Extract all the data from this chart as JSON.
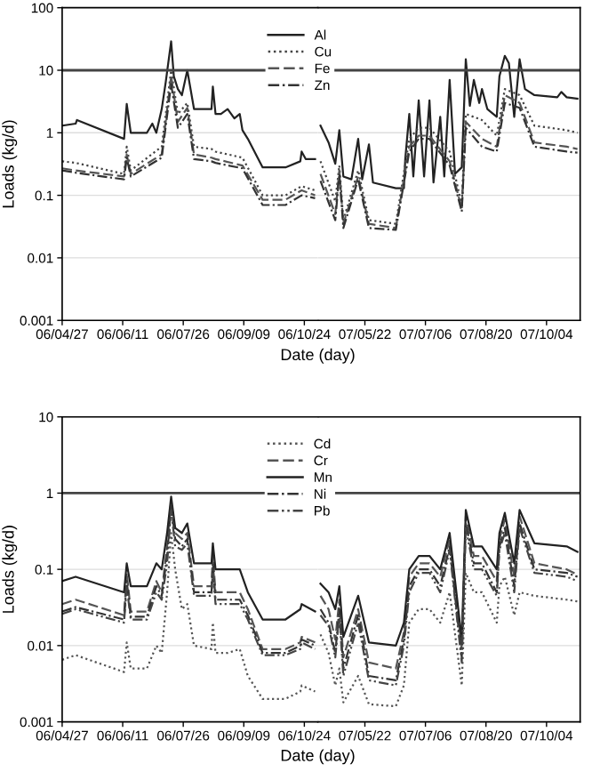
{
  "chart_data": [
    {
      "type": "line",
      "xlabel": "Date (day)",
      "ylabel": "Loads (kg/d)",
      "log": "y",
      "grid": "y",
      "legend": "top center",
      "xlim": [
        "2006-04-27",
        "2006-11-03"
      ],
      "ylim": [
        0.001,
        100
      ],
      "yticks": [
        0.001,
        0.01,
        0.1,
        1,
        10,
        100
      ],
      "xticks": [
        {
          "value": "2006-04-27",
          "label": "06/04/27"
        },
        {
          "value": "2006-06-11",
          "label": "06/06/11"
        },
        {
          "value": "2006-07-26",
          "label": "06/07/26"
        },
        {
          "value": "2006-09-09",
          "label": "06/09/09"
        },
        {
          "value": "2006-10-24",
          "label": "06/10/24"
        }
      ],
      "ref_lines": [
        {
          "axis": "y",
          "value": 10,
          "color": "#444444"
        }
      ],
      "series": [
        {
          "name": "Al",
          "color": "#222222",
          "line_style": "solid",
          "x": [
            "2006-04-27",
            "2006-05-07",
            "2006-05-08",
            "2006-06-12",
            "2006-06-14",
            "2006-06-17",
            "2006-06-29",
            "2006-07-03",
            "2006-07-06",
            "2006-07-10",
            "2006-07-13",
            "2006-07-17",
            "2006-07-19",
            "2006-07-22",
            "2006-07-25",
            "2006-07-29",
            "2006-08-03",
            "2006-08-16",
            "2006-08-17",
            "2006-08-19",
            "2006-08-23",
            "2006-08-28",
            "2006-09-02",
            "2006-09-06",
            "2006-09-08",
            "2006-09-12",
            "2006-09-23",
            "2006-10-10",
            "2006-10-21",
            "2006-10-22",
            "2006-10-25",
            "2006-11-01"
          ],
          "values": [
            1.3,
            1.4,
            1.6,
            0.8,
            2.9,
            1.0,
            1.0,
            1.4,
            1.0,
            2.4,
            6.5,
            29,
            8,
            5,
            4,
            10,
            2.4,
            2.4,
            5.5,
            2,
            2,
            2.4,
            1.7,
            2,
            1.1,
            0.8,
            0.28,
            0.28,
            0.35,
            0.5,
            0.38,
            0.38
          ]
        },
        {
          "name": "Cu",
          "color": "#444444",
          "line_style": "dotted",
          "x": [
            "2006-04-27",
            "2006-05-07",
            "2006-06-12",
            "2006-06-14",
            "2006-06-17",
            "2006-07-10",
            "2006-07-17",
            "2006-07-22",
            "2006-07-29",
            "2006-08-03",
            "2006-08-16",
            "2006-08-19",
            "2006-09-08",
            "2006-09-23",
            "2006-10-10",
            "2006-10-22",
            "2006-11-01"
          ],
          "values": [
            0.35,
            0.33,
            0.22,
            0.6,
            0.25,
            0.6,
            10,
            2,
            3,
            0.6,
            0.55,
            0.5,
            0.4,
            0.1,
            0.1,
            0.14,
            0.12
          ]
        },
        {
          "name": "Fe",
          "color": "#555555",
          "line_style": "dashed",
          "x": [
            "2006-04-27",
            "2006-05-07",
            "2006-06-12",
            "2006-06-14",
            "2006-06-17",
            "2006-07-10",
            "2006-07-17",
            "2006-07-22",
            "2006-07-29",
            "2006-08-03",
            "2006-08-16",
            "2006-08-19",
            "2006-09-08",
            "2006-09-23",
            "2006-10-10",
            "2006-10-22",
            "2006-11-01"
          ],
          "values": [
            0.27,
            0.25,
            0.2,
            0.45,
            0.22,
            0.45,
            8,
            1.5,
            2.5,
            0.45,
            0.4,
            0.38,
            0.3,
            0.085,
            0.085,
            0.12,
            0.1
          ]
        },
        {
          "name": "Zn",
          "color": "#333333",
          "line_style": "dashdot",
          "x": [
            "2006-04-27",
            "2006-05-07",
            "2006-06-12",
            "2006-06-14",
            "2006-06-17",
            "2006-07-10",
            "2006-07-17",
            "2006-07-22",
            "2006-07-29",
            "2006-08-03",
            "2006-08-16",
            "2006-08-19",
            "2006-09-08",
            "2006-09-23",
            "2006-10-10",
            "2006-10-22",
            "2006-11-01"
          ],
          "values": [
            0.25,
            0.23,
            0.18,
            0.4,
            0.2,
            0.4,
            6,
            1.2,
            2,
            0.38,
            0.35,
            0.33,
            0.27,
            0.07,
            0.07,
            0.1,
            0.09
          ]
        }
      ]
    },
    {
      "type": "line",
      "log": "y",
      "grid": "y",
      "tick_labels": "x",
      "xlim": [
        "2007-04-17",
        "2007-10-29"
      ],
      "ylim": [
        0.001,
        100
      ],
      "yticks": [
        0.001,
        0.01,
        0.1,
        1,
        10,
        100
      ],
      "xticks": [
        {
          "value": "2007-05-22",
          "label": "07/05/22"
        },
        {
          "value": "2007-07-06",
          "label": "07/07/06"
        },
        {
          "value": "2007-08-20",
          "label": "07/08/20"
        },
        {
          "value": "2007-10-04",
          "label": "07/10/04"
        }
      ],
      "ref_lines": [
        {
          "axis": "y",
          "value": 10,
          "color": "#444444"
        }
      ],
      "series": [
        {
          "color": "#222222",
          "line_style": "solid",
          "x": [
            "2007-04-19",
            "2007-04-25",
            "2007-04-30",
            "2007-05-03",
            "2007-05-06",
            "2007-05-12",
            "2007-05-17",
            "2007-05-20",
            "2007-05-25",
            "2007-05-28",
            "2007-06-14",
            "2007-06-20",
            "2007-06-21",
            "2007-06-24",
            "2007-06-27",
            "2007-07-01",
            "2007-07-05",
            "2007-07-09",
            "2007-07-12",
            "2007-07-17",
            "2007-07-20",
            "2007-07-24",
            "2007-07-28",
            "2007-08-02",
            "2007-08-05",
            "2007-08-08",
            "2007-08-11",
            "2007-08-15",
            "2007-08-17",
            "2007-08-21",
            "2007-08-28",
            "2007-08-30",
            "2007-09-03",
            "2007-09-06",
            "2007-09-10",
            "2007-09-14",
            "2007-09-18",
            "2007-09-25",
            "2007-10-12",
            "2007-10-15",
            "2007-10-19",
            "2007-10-27"
          ],
          "values": [
            1.3,
            0.7,
            0.32,
            1.1,
            0.2,
            0.18,
            0.8,
            0.18,
            0.65,
            0.16,
            0.13,
            0.13,
            0.38,
            2,
            0.2,
            3.3,
            0.2,
            3.3,
            0.16,
            1.8,
            0.2,
            7,
            0.22,
            0.28,
            15,
            2.7,
            7,
            3,
            5,
            2.4,
            1.8,
            8,
            17,
            13,
            1.8,
            15,
            5,
            4,
            3.7,
            4.5,
            3.7,
            3.5
          ]
        },
        {
          "color": "#444444",
          "line_style": "dotted",
          "x": [
            "2007-04-19",
            "2007-04-30",
            "2007-05-03",
            "2007-05-06",
            "2007-05-17",
            "2007-05-25",
            "2007-06-14",
            "2007-06-24",
            "2007-07-01",
            "2007-07-09",
            "2007-07-24",
            "2007-08-02",
            "2007-08-05",
            "2007-08-17",
            "2007-08-28",
            "2007-09-03",
            "2007-09-14",
            "2007-09-25",
            "2007-10-19",
            "2007-10-27"
          ],
          "values": [
            0.35,
            0.08,
            0.3,
            0.04,
            0.25,
            0.04,
            0.035,
            0.8,
            1.2,
            1.2,
            0.5,
            0.07,
            2,
            1.6,
            0.9,
            5,
            4,
            1.3,
            1.1,
            1.0
          ]
        },
        {
          "color": "#555555",
          "line_style": "dashed",
          "x": [
            "2007-04-19",
            "2007-04-30",
            "2007-05-03",
            "2007-05-06",
            "2007-05-17",
            "2007-05-25",
            "2007-06-14",
            "2007-06-24",
            "2007-07-01",
            "2007-07-09",
            "2007-07-24",
            "2007-08-02",
            "2007-08-05",
            "2007-08-17",
            "2007-08-28",
            "2007-09-03",
            "2007-09-14",
            "2007-09-25",
            "2007-10-19",
            "2007-10-27"
          ],
          "values": [
            0.22,
            0.05,
            0.25,
            0.035,
            0.2,
            0.035,
            0.03,
            0.6,
            0.9,
            0.9,
            0.35,
            0.06,
            1.5,
            0.8,
            0.6,
            4,
            3,
            0.7,
            0.6,
            0.55
          ]
        },
        {
          "color": "#333333",
          "line_style": "dashdot",
          "x": [
            "2007-04-19",
            "2007-04-30",
            "2007-05-03",
            "2007-05-06",
            "2007-05-17",
            "2007-05-25",
            "2007-06-14",
            "2007-06-24",
            "2007-07-01",
            "2007-07-09",
            "2007-07-24",
            "2007-08-02",
            "2007-08-05",
            "2007-08-17",
            "2007-08-28",
            "2007-09-03",
            "2007-09-14",
            "2007-09-25",
            "2007-10-19",
            "2007-10-27"
          ],
          "values": [
            0.17,
            0.04,
            0.22,
            0.03,
            0.18,
            0.03,
            0.028,
            0.5,
            0.8,
            0.8,
            0.3,
            0.055,
            1.2,
            0.6,
            0.5,
            3,
            2.5,
            0.6,
            0.5,
            0.48
          ]
        }
      ]
    },
    {
      "type": "line",
      "xlabel": "Date (day)",
      "ylabel": "Loads (kg/d)",
      "log": "y",
      "grid": "y",
      "legend": "top center",
      "xlim": [
        "2006-04-27",
        "2006-11-03"
      ],
      "ylim": [
        0.001,
        10
      ],
      "yticks": [
        0.001,
        0.01,
        0.1,
        1,
        10
      ],
      "xticks": [
        {
          "value": "2006-04-27",
          "label": "06/04/27"
        },
        {
          "value": "2006-06-11",
          "label": "06/06/11"
        },
        {
          "value": "2006-07-26",
          "label": "06/07/26"
        },
        {
          "value": "2006-09-09",
          "label": "06/09/09"
        },
        {
          "value": "2006-10-24",
          "label": "06/10/24"
        }
      ],
      "ref_lines": [
        {
          "axis": "y",
          "value": 1,
          "color": "#444444"
        }
      ],
      "series": [
        {
          "name": "Cd",
          "color": "#555555",
          "line_style": "dotted",
          "x": [
            "2006-04-27",
            "2006-05-07",
            "2006-06-12",
            "2006-06-14",
            "2006-06-17",
            "2006-06-29",
            "2006-07-06",
            "2006-07-10",
            "2006-07-14",
            "2006-07-17",
            "2006-07-20",
            "2006-07-25",
            "2006-07-29",
            "2006-08-03",
            "2006-08-16",
            "2006-08-17",
            "2006-08-19",
            "2006-08-28",
            "2006-09-06",
            "2006-09-12",
            "2006-09-23",
            "2006-10-10",
            "2006-10-21",
            "2006-10-22",
            "2006-11-01"
          ],
          "values": [
            0.0065,
            0.0075,
            0.0045,
            0.011,
            0.005,
            0.005,
            0.01,
            0.008,
            0.05,
            0.3,
            0.1,
            0.03,
            0.035,
            0.01,
            0.009,
            0.02,
            0.008,
            0.008,
            0.009,
            0.004,
            0.002,
            0.002,
            0.0025,
            0.003,
            0.0025
          ]
        },
        {
          "name": "Cr",
          "color": "#555555",
          "line_style": "dashed",
          "x": [
            "2006-04-27",
            "2006-05-07",
            "2006-06-12",
            "2006-06-14",
            "2006-06-17",
            "2006-06-29",
            "2006-07-06",
            "2006-07-10",
            "2006-07-14",
            "2006-07-17",
            "2006-07-20",
            "2006-07-25",
            "2006-07-29",
            "2006-08-03",
            "2006-08-16",
            "2006-08-17",
            "2006-08-19",
            "2006-08-28",
            "2006-09-06",
            "2006-09-12",
            "2006-09-23",
            "2006-10-10",
            "2006-10-21",
            "2006-10-22",
            "2006-11-01"
          ],
          "values": [
            0.035,
            0.04,
            0.025,
            0.09,
            0.028,
            0.028,
            0.07,
            0.05,
            0.2,
            0.8,
            0.3,
            0.25,
            0.3,
            0.06,
            0.06,
            0.15,
            0.05,
            0.05,
            0.05,
            0.03,
            0.009,
            0.009,
            0.011,
            0.013,
            0.011
          ]
        },
        {
          "name": "Mn",
          "color": "#222222",
          "line_style": "solid",
          "x": [
            "2006-04-27",
            "2006-05-07",
            "2006-06-12",
            "2006-06-14",
            "2006-06-17",
            "2006-06-29",
            "2006-07-06",
            "2006-07-10",
            "2006-07-14",
            "2006-07-17",
            "2006-07-20",
            "2006-07-25",
            "2006-07-29",
            "2006-08-03",
            "2006-08-16",
            "2006-08-17",
            "2006-08-19",
            "2006-08-28",
            "2006-09-06",
            "2006-09-12",
            "2006-09-23",
            "2006-10-10",
            "2006-10-21",
            "2006-10-22",
            "2006-11-01"
          ],
          "values": [
            0.07,
            0.08,
            0.05,
            0.12,
            0.06,
            0.06,
            0.12,
            0.1,
            0.3,
            0.9,
            0.35,
            0.3,
            0.4,
            0.12,
            0.12,
            0.22,
            0.1,
            0.1,
            0.1,
            0.05,
            0.022,
            0.022,
            0.03,
            0.035,
            0.028
          ]
        },
        {
          "name": "Ni",
          "color": "#333333",
          "line_style": "dashdot",
          "x": [
            "2006-04-27",
            "2006-05-07",
            "2006-06-12",
            "2006-06-14",
            "2006-06-17",
            "2006-06-29",
            "2006-07-06",
            "2006-07-10",
            "2006-07-14",
            "2006-07-17",
            "2006-07-20",
            "2006-07-25",
            "2006-07-29",
            "2006-08-03",
            "2006-08-16",
            "2006-08-17",
            "2006-08-19",
            "2006-08-28",
            "2006-09-06",
            "2006-09-12",
            "2006-09-23",
            "2006-10-10",
            "2006-10-21",
            "2006-10-22",
            "2006-11-01"
          ],
          "values": [
            0.028,
            0.032,
            0.022,
            0.07,
            0.024,
            0.024,
            0.06,
            0.045,
            0.15,
            0.7,
            0.25,
            0.2,
            0.25,
            0.05,
            0.05,
            0.12,
            0.04,
            0.04,
            0.04,
            0.025,
            0.008,
            0.008,
            0.01,
            0.012,
            0.01
          ]
        },
        {
          "name": "Pb",
          "color": "#444444",
          "line_style": "dashdotdot",
          "x": [
            "2006-04-27",
            "2006-05-07",
            "2006-06-12",
            "2006-06-14",
            "2006-06-17",
            "2006-06-29",
            "2006-07-06",
            "2006-07-10",
            "2006-07-14",
            "2006-07-17",
            "2006-07-20",
            "2006-07-25",
            "2006-07-29",
            "2006-08-03",
            "2006-08-16",
            "2006-08-17",
            "2006-08-19",
            "2006-08-28",
            "2006-09-06",
            "2006-09-12",
            "2006-09-23",
            "2006-10-10",
            "2006-10-21",
            "2006-10-22",
            "2006-11-01"
          ],
          "values": [
            0.026,
            0.03,
            0.02,
            0.06,
            0.022,
            0.022,
            0.05,
            0.04,
            0.12,
            0.6,
            0.2,
            0.18,
            0.22,
            0.045,
            0.045,
            0.1,
            0.035,
            0.035,
            0.035,
            0.022,
            0.0075,
            0.0075,
            0.009,
            0.011,
            0.009
          ]
        }
      ]
    },
    {
      "type": "line",
      "log": "y",
      "grid": "y",
      "tick_labels": "x",
      "xlim": [
        "2007-04-17",
        "2007-10-29"
      ],
      "ylim": [
        0.001,
        10
      ],
      "yticks": [
        0.001,
        0.01,
        0.1,
        1,
        10
      ],
      "xticks": [
        {
          "value": "2007-05-22",
          "label": "07/05/22"
        },
        {
          "value": "2007-07-06",
          "label": "07/07/06"
        },
        {
          "value": "2007-08-20",
          "label": "07/08/20"
        },
        {
          "value": "2007-10-04",
          "label": "07/10/04"
        }
      ],
      "ref_lines": [
        {
          "axis": "y",
          "value": 1,
          "color": "#444444"
        }
      ],
      "series": [
        {
          "color": "#555555",
          "line_style": "dotted",
          "x": [
            "2007-04-19",
            "2007-04-25",
            "2007-04-30",
            "2007-05-03",
            "2007-05-06",
            "2007-05-17",
            "2007-05-25",
            "2007-06-14",
            "2007-06-20",
            "2007-06-24",
            "2007-07-01",
            "2007-07-09",
            "2007-07-17",
            "2007-07-24",
            "2007-08-02",
            "2007-08-05",
            "2007-08-11",
            "2007-08-17",
            "2007-08-28",
            "2007-08-30",
            "2007-09-03",
            "2007-09-10",
            "2007-09-14",
            "2007-09-25",
            "2007-10-19",
            "2007-10-27"
          ],
          "values": [
            0.014,
            0.008,
            0.003,
            0.005,
            0.0018,
            0.004,
            0.0017,
            0.0016,
            0.003,
            0.02,
            0.03,
            0.03,
            0.02,
            0.05,
            0.003,
            0.09,
            0.05,
            0.05,
            0.02,
            0.06,
            0.08,
            0.025,
            0.05,
            0.045,
            0.04,
            0.038
          ]
        },
        {
          "color": "#555555",
          "line_style": "dashed",
          "x": [
            "2007-04-19",
            "2007-04-25",
            "2007-04-30",
            "2007-05-03",
            "2007-05-06",
            "2007-05-17",
            "2007-05-25",
            "2007-06-14",
            "2007-06-20",
            "2007-06-24",
            "2007-07-01",
            "2007-07-09",
            "2007-07-17",
            "2007-07-24",
            "2007-08-02",
            "2007-08-05",
            "2007-08-11",
            "2007-08-17",
            "2007-08-28",
            "2007-08-30",
            "2007-09-03",
            "2007-09-10",
            "2007-09-14",
            "2007-09-25",
            "2007-10-19",
            "2007-10-27"
          ],
          "values": [
            0.045,
            0.03,
            0.012,
            0.04,
            0.007,
            0.03,
            0.006,
            0.005,
            0.015,
            0.08,
            0.12,
            0.12,
            0.08,
            0.25,
            0.009,
            0.5,
            0.15,
            0.15,
            0.07,
            0.25,
            0.45,
            0.08,
            0.5,
            0.12,
            0.1,
            0.085
          ]
        },
        {
          "color": "#222222",
          "line_style": "solid",
          "x": [
            "2007-04-19",
            "2007-04-25",
            "2007-04-30",
            "2007-05-03",
            "2007-05-06",
            "2007-05-17",
            "2007-05-25",
            "2007-06-14",
            "2007-06-20",
            "2007-06-24",
            "2007-07-01",
            "2007-07-09",
            "2007-07-17",
            "2007-07-24",
            "2007-08-02",
            "2007-08-05",
            "2007-08-11",
            "2007-08-17",
            "2007-08-28",
            "2007-08-30",
            "2007-09-03",
            "2007-09-10",
            "2007-09-14",
            "2007-09-25",
            "2007-10-19",
            "2007-10-27"
          ],
          "values": [
            0.065,
            0.05,
            0.03,
            0.06,
            0.013,
            0.045,
            0.011,
            0.01,
            0.02,
            0.1,
            0.15,
            0.15,
            0.1,
            0.3,
            0.012,
            0.6,
            0.2,
            0.2,
            0.1,
            0.3,
            0.55,
            0.12,
            0.6,
            0.22,
            0.2,
            0.17
          ]
        },
        {
          "color": "#333333",
          "line_style": "dashdot",
          "x": [
            "2007-04-19",
            "2007-04-25",
            "2007-04-30",
            "2007-05-03",
            "2007-05-06",
            "2007-05-17",
            "2007-05-25",
            "2007-06-14",
            "2007-06-20",
            "2007-06-24",
            "2007-07-01",
            "2007-07-09",
            "2007-07-17",
            "2007-07-24",
            "2007-08-02",
            "2007-08-05",
            "2007-08-11",
            "2007-08-17",
            "2007-08-28",
            "2007-08-30",
            "2007-09-03",
            "2007-09-10",
            "2007-09-14",
            "2007-09-25",
            "2007-10-19",
            "2007-10-27"
          ],
          "values": [
            0.03,
            0.02,
            0.008,
            0.03,
            0.005,
            0.025,
            0.004,
            0.0035,
            0.012,
            0.06,
            0.1,
            0.1,
            0.06,
            0.2,
            0.007,
            0.4,
            0.12,
            0.12,
            0.05,
            0.2,
            0.35,
            0.06,
            0.4,
            0.1,
            0.09,
            0.08
          ]
        },
        {
          "color": "#444444",
          "line_style": "dashdotdot",
          "x": [
            "2007-04-19",
            "2007-04-25",
            "2007-04-30",
            "2007-05-03",
            "2007-05-06",
            "2007-05-17",
            "2007-05-25",
            "2007-06-14",
            "2007-06-20",
            "2007-06-24",
            "2007-07-01",
            "2007-07-09",
            "2007-07-17",
            "2007-07-24",
            "2007-08-02",
            "2007-08-05",
            "2007-08-11",
            "2007-08-17",
            "2007-08-28",
            "2007-08-30",
            "2007-09-03",
            "2007-09-10",
            "2007-09-14",
            "2007-09-25",
            "2007-10-19",
            "2007-10-27"
          ],
          "values": [
            0.025,
            0.018,
            0.007,
            0.025,
            0.004,
            0.02,
            0.0035,
            0.003,
            0.01,
            0.05,
            0.09,
            0.09,
            0.05,
            0.18,
            0.006,
            0.35,
            0.1,
            0.1,
            0.045,
            0.18,
            0.3,
            0.05,
            0.35,
            0.09,
            0.08,
            0.07
          ]
        }
      ]
    }
  ]
}
